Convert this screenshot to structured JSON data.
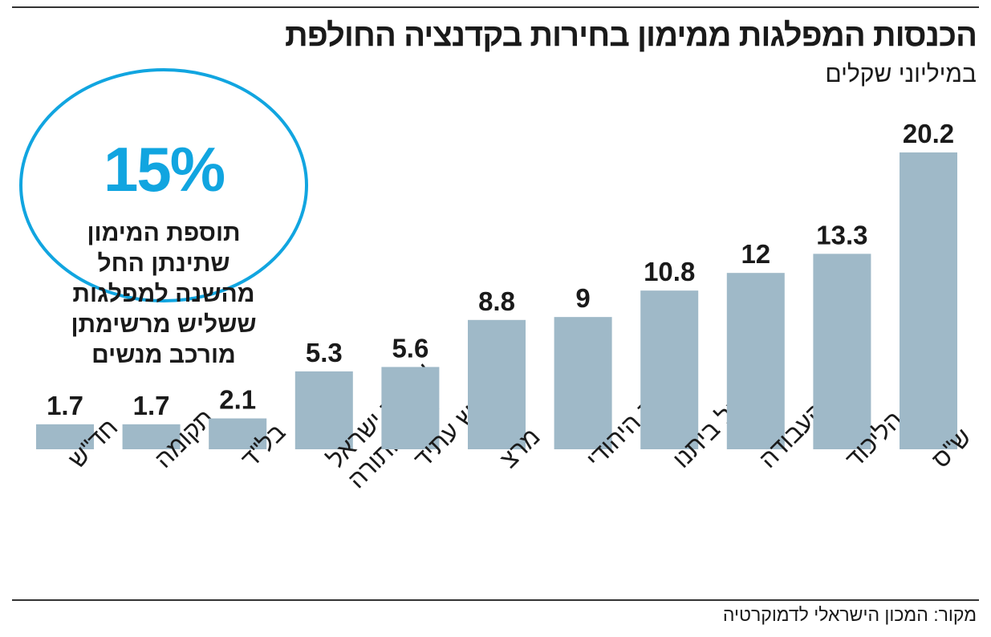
{
  "header": {
    "title": "הכנסות המפלגות ממימון בחירות בקדנציה החולפת",
    "subtitle": "במיליוני שקלים"
  },
  "callout": {
    "percent": "15%",
    "lines": [
      "תוספת המימון",
      "שתינתן החל",
      "מהשנה למפלגות",
      "ששליש מרשימתן",
      "מורכב מנשים"
    ]
  },
  "footer": {
    "source": "מקור: המכון הישראלי לדמוקרטיה"
  },
  "colors": {
    "bar": "#9fb9c8",
    "accent": "#11a5e0",
    "text": "#1a1a1a"
  },
  "chart_data": {
    "type": "bar",
    "title": "הכנסות המפלגות ממימון בחירות בקדנציה החולפת",
    "ylabel": "במיליוני שקלים",
    "xlabel": "",
    "ylim": [
      0,
      22
    ],
    "grid": false,
    "categories": [
      "חד\"ש",
      "תקומה",
      "בל\"ד",
      "אגודת ישראל ודגל התורה",
      "יש עתיד",
      "מרצ",
      "הבית היהודי",
      "ישראל ביתנו",
      "העבודה",
      "הליכוד",
      "ש\"ס"
    ],
    "category_lines": [
      [
        "חד\"ש"
      ],
      [
        "תקומה"
      ],
      [
        "בל\"ד"
      ],
      [
        "אגודת ישראל",
        "ודגל התורה"
      ],
      [
        "יש עתיד"
      ],
      [
        "מרצ"
      ],
      [
        "הבית היהודי"
      ],
      [
        "ישראל ביתנו"
      ],
      [
        "העבודה"
      ],
      [
        "הליכוד"
      ],
      [
        "ש\"ס"
      ]
    ],
    "values": [
      1.7,
      1.7,
      2.1,
      5.3,
      5.6,
      8.8,
      9,
      10.8,
      12,
      13.3,
      20.2
    ],
    "value_labels": [
      "1.7",
      "1.7",
      "2.1",
      "5.3",
      "5.6",
      "8.8",
      "9",
      "10.8",
      "12",
      "13.3",
      "20.2"
    ]
  }
}
